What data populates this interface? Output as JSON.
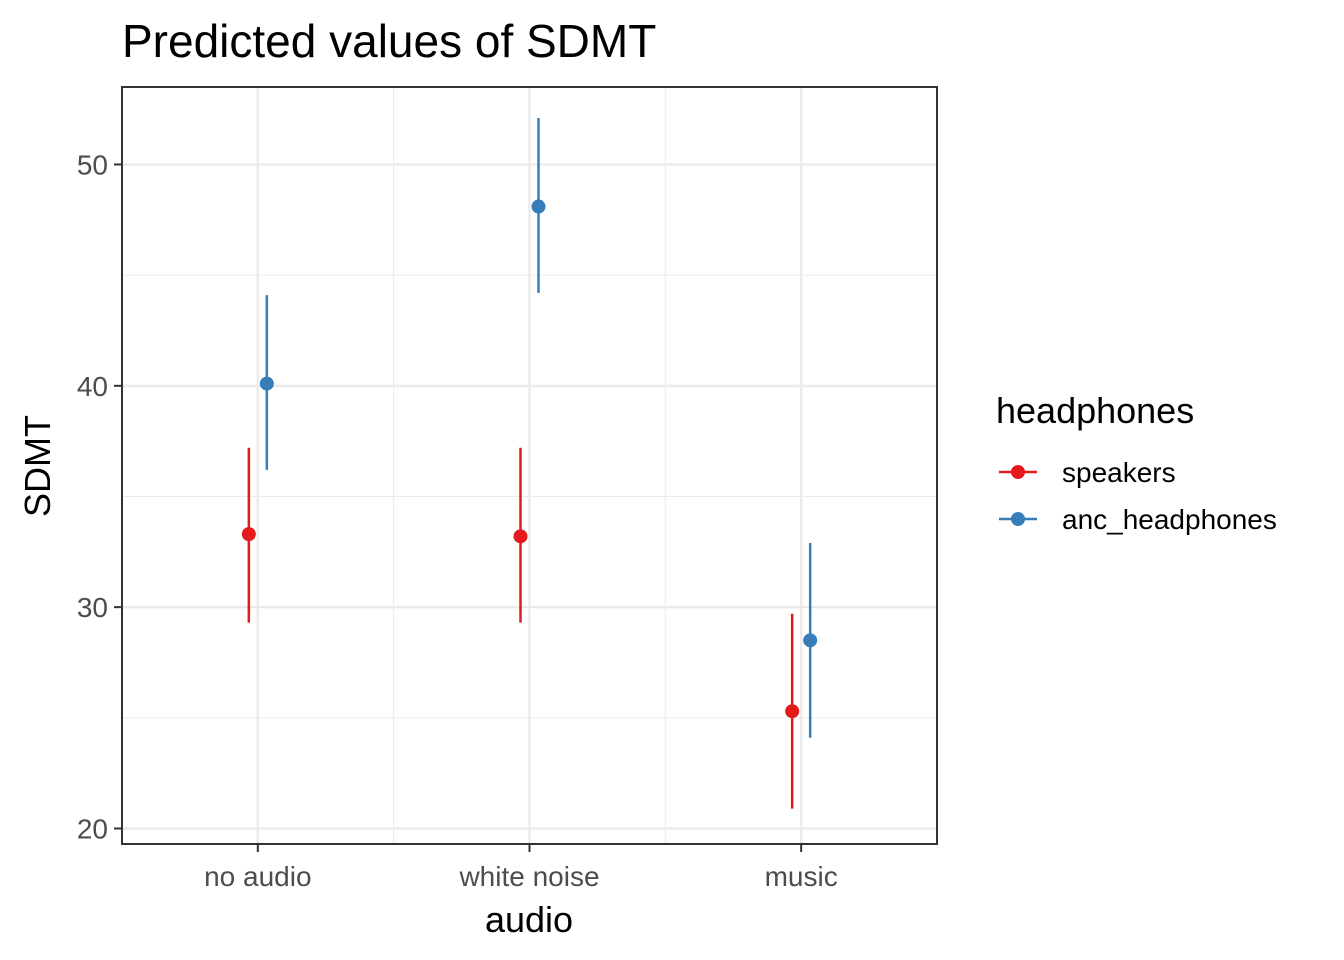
{
  "chart_data": {
    "type": "scatter",
    "title": "Predicted values of SDMT",
    "xlabel": "audio",
    "ylabel": "SDMT",
    "categories": [
      "no audio",
      "white noise",
      "music"
    ],
    "ylim": [
      19.3,
      53.5
    ],
    "yticks": [
      20,
      30,
      40,
      50
    ],
    "grid": true,
    "legend": {
      "title": "headphones",
      "position": "right",
      "entries": [
        "speakers",
        "anc_headphones"
      ]
    },
    "series": [
      {
        "name": "speakers",
        "color": "#e41a1c",
        "values": [
          33.3,
          33.2,
          25.3
        ],
        "lower": [
          29.3,
          29.3,
          20.9
        ],
        "upper": [
          37.2,
          37.2,
          29.7
        ]
      },
      {
        "name": "anc_headphones",
        "color": "#377eb8",
        "values": [
          40.1,
          48.1,
          28.5
        ],
        "lower": [
          36.2,
          44.2,
          24.1
        ],
        "upper": [
          44.1,
          52.1,
          32.9
        ]
      }
    ]
  }
}
